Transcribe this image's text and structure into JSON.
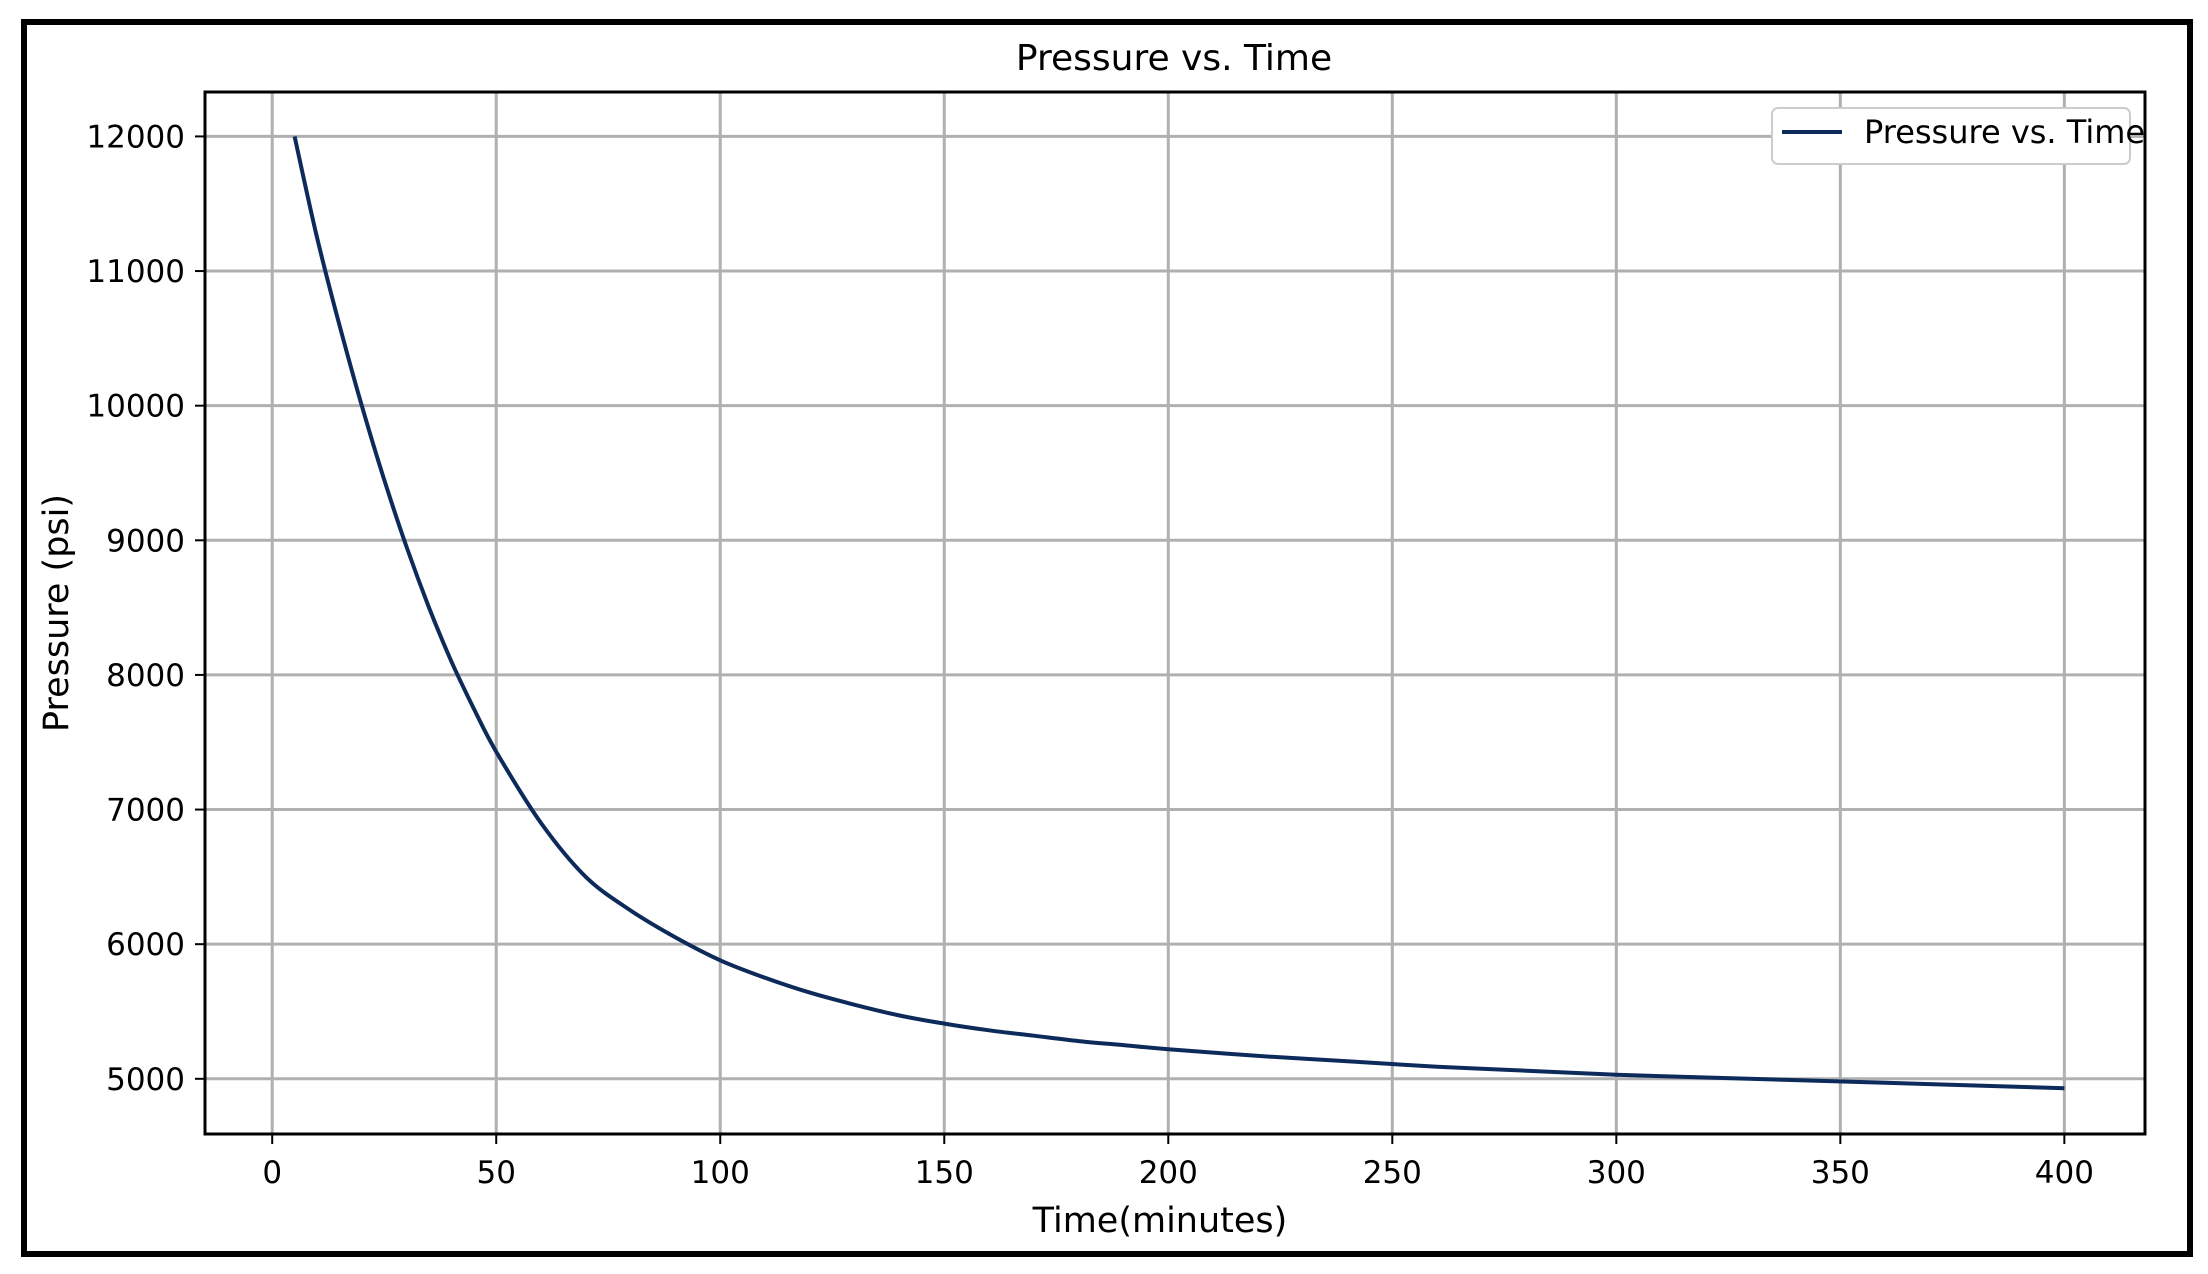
{
  "chart_data": {
    "type": "line",
    "title": "Pressure vs. Time",
    "xlabel": "Time(minutes)",
    "ylabel": "Pressure (psi)",
    "xlim": [
      -15,
      418
    ],
    "ylim": [
      4590,
      12330
    ],
    "xticks": [
      0,
      50,
      100,
      150,
      200,
      250,
      300,
      350,
      400
    ],
    "xtick_labels": [
      "0",
      "50",
      "100",
      "150",
      "200",
      "250",
      "300",
      "350",
      "400"
    ],
    "yticks": [
      5000,
      6000,
      7000,
      8000,
      9000,
      10000,
      11000,
      12000
    ],
    "ytick_labels": [
      "5000",
      "6000",
      "7000",
      "8000",
      "9000",
      "10000",
      "11000",
      "12000"
    ],
    "grid": true,
    "legend_position": "top-right",
    "series": [
      {
        "name": "Pressure vs. Time",
        "color": "#0d2b5a",
        "x": [
          5,
          10,
          15,
          20,
          25,
          30,
          35,
          40,
          45,
          50,
          60,
          70,
          80,
          90,
          100,
          110,
          120,
          130,
          140,
          150,
          160,
          170,
          180,
          190,
          200,
          220,
          240,
          260,
          280,
          300,
          320,
          340,
          360,
          380,
          400
        ],
        "y": [
          12000,
          11250,
          10600,
          10000,
          9450,
          8950,
          8500,
          8100,
          7750,
          7430,
          6900,
          6500,
          6250,
          6050,
          5880,
          5750,
          5640,
          5550,
          5470,
          5410,
          5360,
          5320,
          5280,
          5250,
          5220,
          5170,
          5130,
          5090,
          5060,
          5030,
          5010,
          4990,
          4970,
          4950,
          4930
        ]
      }
    ]
  }
}
